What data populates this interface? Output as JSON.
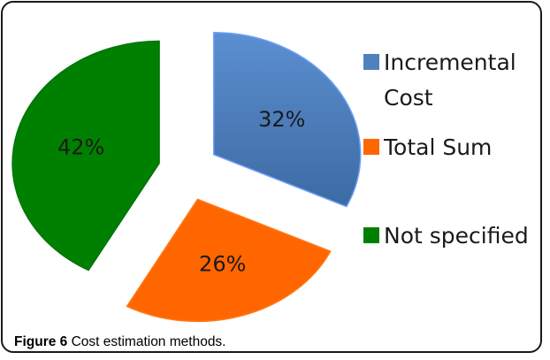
{
  "chart_data": {
    "type": "pie",
    "exploded": true,
    "slices": [
      {
        "label": "Incremental Cost",
        "value": 32,
        "display": "32%",
        "color": "#4f81bd",
        "legend_lines": [
          "Incremental",
          "Cost"
        ]
      },
      {
        "label": "Total Sum",
        "value": 26,
        "display": "26%",
        "color": "#ff6600",
        "legend_lines": [
          "Total Sum"
        ]
      },
      {
        "label": "Not specified",
        "value": 42,
        "display": "42%",
        "color": "#008000",
        "legend_lines": [
          "Not specified"
        ]
      }
    ],
    "legend_position": "right"
  },
  "caption": {
    "label": "Figure 6",
    "text": "Cost estimation methods."
  }
}
